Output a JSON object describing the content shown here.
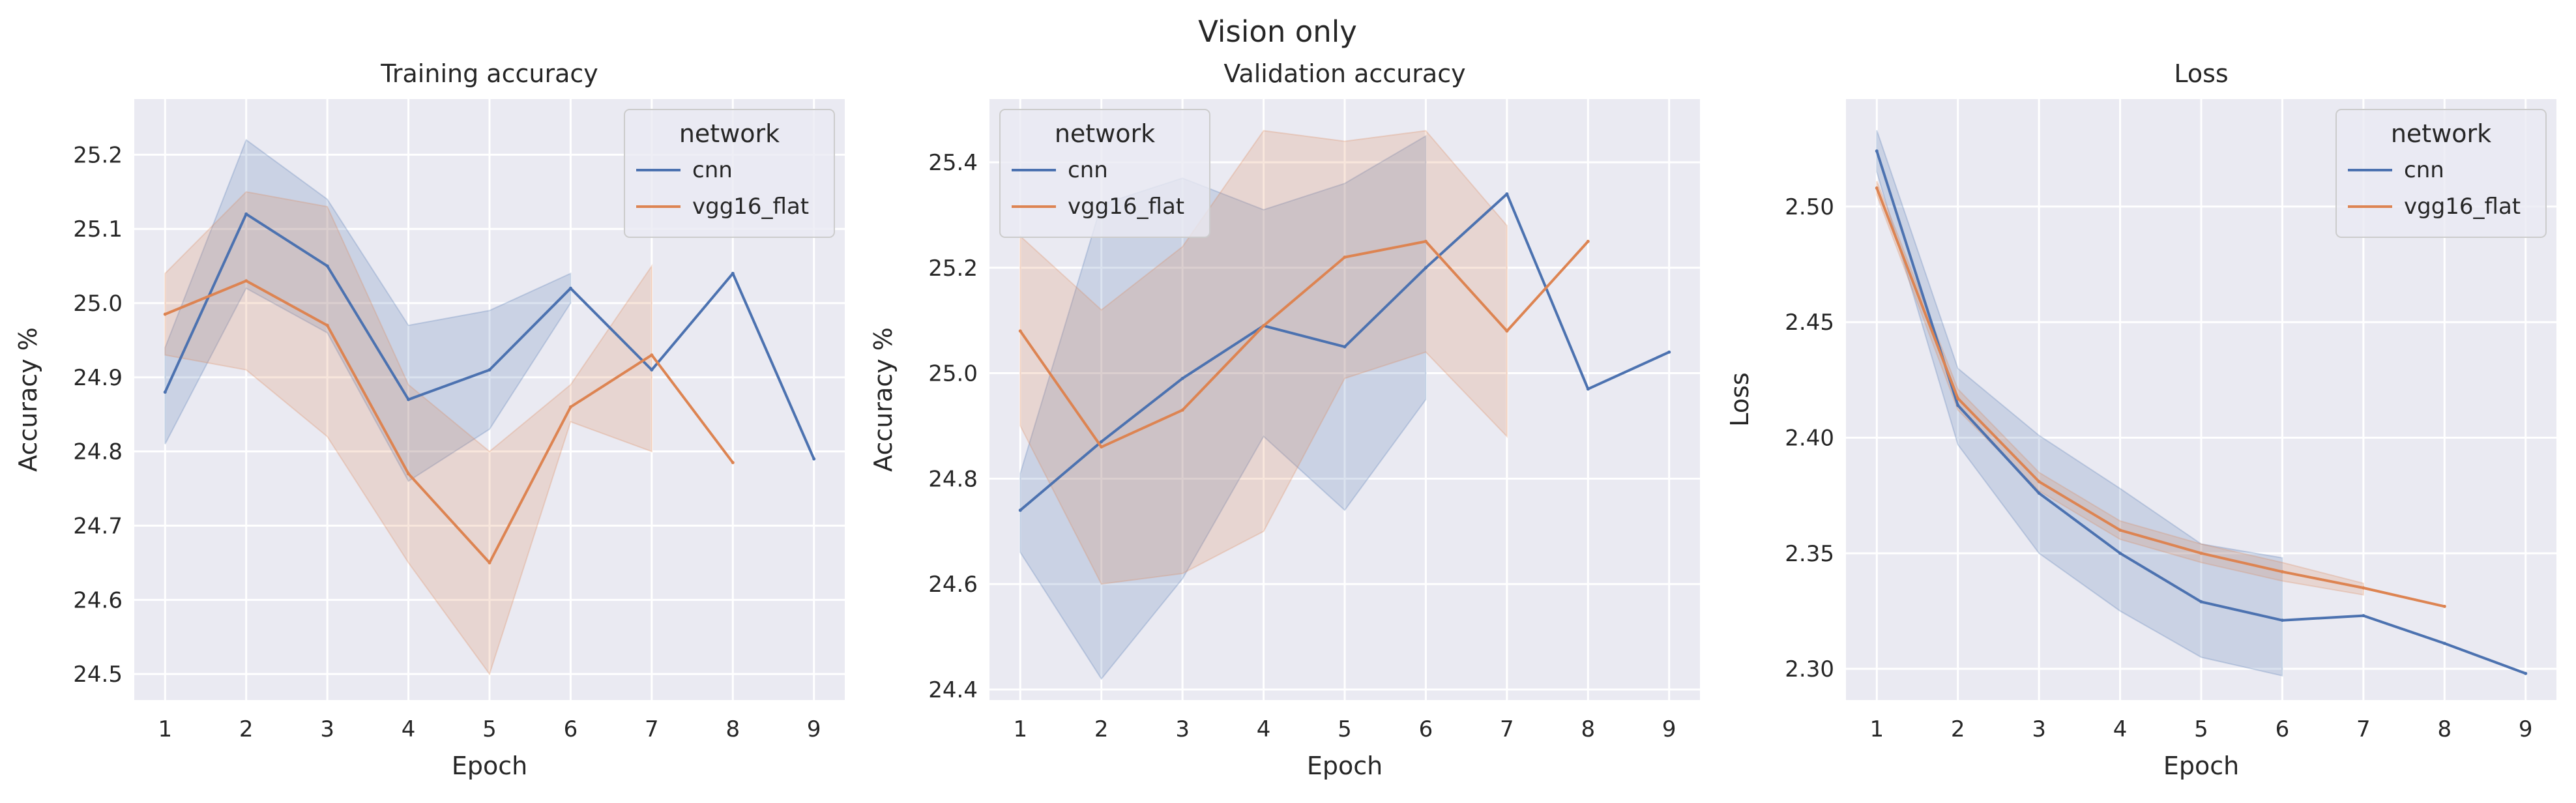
{
  "figure": {
    "title": "Vision only"
  },
  "colors": {
    "background": "#eaeaf2",
    "grid": "#ffffff",
    "cnn": "#4c72b0",
    "vgg16_flat": "#dd8452"
  },
  "chart_data": [
    {
      "type": "line",
      "title": "Training accuracy",
      "xlabel": "Epoch",
      "ylabel": "Accuracy %",
      "xlim": [
        0.62,
        9.38
      ],
      "ylim": [
        24.465,
        25.275
      ],
      "xticks": [
        1,
        2,
        3,
        4,
        5,
        6,
        7,
        8,
        9
      ],
      "yticks": [
        24.5,
        24.6,
        24.7,
        24.8,
        24.9,
        25.0,
        25.1,
        25.2
      ],
      "grid": true,
      "legend": {
        "title": "network",
        "position": "top-right",
        "entries": [
          "cnn",
          "vgg16_flat"
        ]
      },
      "series": [
        {
          "name": "cnn",
          "x": [
            1,
            2,
            3,
            4,
            5,
            6,
            7,
            8,
            9
          ],
          "y": [
            24.88,
            25.12,
            25.05,
            24.87,
            24.91,
            25.02,
            24.91,
            25.04,
            24.79
          ],
          "band": {
            "x": [
              1,
              2,
              3,
              4,
              5,
              6
            ],
            "lower": [
              24.81,
              25.02,
              24.96,
              24.76,
              24.83,
              25.0
            ],
            "upper": [
              24.94,
              25.22,
              25.14,
              24.97,
              24.99,
              25.04
            ]
          }
        },
        {
          "name": "vgg16_flat",
          "x": [
            1,
            2,
            3,
            4,
            5,
            6,
            7,
            8
          ],
          "y": [
            24.985,
            25.03,
            24.97,
            24.77,
            24.65,
            24.86,
            24.93,
            24.785
          ],
          "band": {
            "x": [
              1,
              2,
              3,
              4,
              5,
              6,
              7
            ],
            "lower": [
              24.93,
              24.91,
              24.82,
              24.65,
              24.5,
              24.84,
              24.8
            ],
            "upper": [
              25.04,
              25.15,
              25.13,
              24.89,
              24.8,
              24.89,
              25.05
            ]
          }
        }
      ]
    },
    {
      "type": "line",
      "title": "Validation accuracy",
      "xlabel": "Epoch",
      "ylabel": "Accuracy %",
      "xlim": [
        0.62,
        9.38
      ],
      "ylim": [
        24.38,
        25.52
      ],
      "xticks": [
        1,
        2,
        3,
        4,
        5,
        6,
        7,
        8,
        9
      ],
      "yticks": [
        24.4,
        24.6,
        24.8,
        25.0,
        25.2,
        25.4
      ],
      "grid": true,
      "legend": {
        "title": "network",
        "position": "top-left",
        "entries": [
          "cnn",
          "vgg16_flat"
        ]
      },
      "series": [
        {
          "name": "cnn",
          "x": [
            1,
            2,
            3,
            4,
            5,
            6,
            7,
            8,
            9
          ],
          "y": [
            24.74,
            24.87,
            24.99,
            25.09,
            25.05,
            25.2,
            25.34,
            24.97,
            25.04
          ],
          "band": {
            "x": [
              1,
              2,
              3,
              4,
              5,
              6
            ],
            "lower": [
              24.66,
              24.42,
              24.61,
              24.88,
              24.74,
              24.95
            ],
            "upper": [
              24.81,
              25.32,
              25.37,
              25.31,
              25.36,
              25.45
            ]
          }
        },
        {
          "name": "vgg16_flat",
          "x": [
            1,
            2,
            3,
            4,
            5,
            6,
            7,
            8
          ],
          "y": [
            25.08,
            24.86,
            24.93,
            25.09,
            25.22,
            25.25,
            25.08,
            25.25
          ],
          "band": {
            "x": [
              1,
              2,
              3,
              4,
              5,
              6,
              7
            ],
            "lower": [
              24.9,
              24.6,
              24.62,
              24.7,
              24.99,
              25.04,
              24.88
            ],
            "upper": [
              25.26,
              25.12,
              25.24,
              25.46,
              25.44,
              25.46,
              25.28
            ]
          }
        }
      ]
    },
    {
      "type": "line",
      "title": "Loss",
      "xlabel": "Epoch",
      "ylabel": "Loss",
      "xlim": [
        0.62,
        9.38
      ],
      "ylim": [
        2.2865,
        2.5465
      ],
      "xticks": [
        1,
        2,
        3,
        4,
        5,
        6,
        7,
        8,
        9
      ],
      "yticks": [
        2.3,
        2.35,
        2.4,
        2.45,
        2.5
      ],
      "grid": true,
      "legend": {
        "title": "network",
        "position": "top-right",
        "entries": [
          "cnn",
          "vgg16_flat"
        ]
      },
      "series": [
        {
          "name": "cnn",
          "x": [
            1,
            2,
            3,
            4,
            5,
            6,
            7,
            8,
            9
          ],
          "y": [
            2.524,
            2.414,
            2.376,
            2.35,
            2.329,
            2.321,
            2.323,
            2.311,
            2.298
          ],
          "band": {
            "x": [
              1,
              2,
              3,
              4,
              5,
              6
            ],
            "lower": [
              2.515,
              2.397,
              2.35,
              2.325,
              2.305,
              2.297
            ],
            "upper": [
              2.533,
              2.43,
              2.401,
              2.378,
              2.354,
              2.348
            ]
          }
        },
        {
          "name": "vgg16_flat",
          "x": [
            1,
            2,
            3,
            4,
            5,
            6,
            7,
            8
          ],
          "y": [
            2.508,
            2.417,
            2.381,
            2.36,
            2.35,
            2.342,
            2.335,
            2.327
          ],
          "band": {
            "x": [
              1,
              2,
              3,
              4,
              5,
              6,
              7
            ],
            "lower": [
              2.505,
              2.412,
              2.377,
              2.356,
              2.346,
              2.338,
              2.332
            ],
            "upper": [
              2.511,
              2.421,
              2.385,
              2.364,
              2.354,
              2.346,
              2.337
            ]
          }
        }
      ]
    }
  ]
}
